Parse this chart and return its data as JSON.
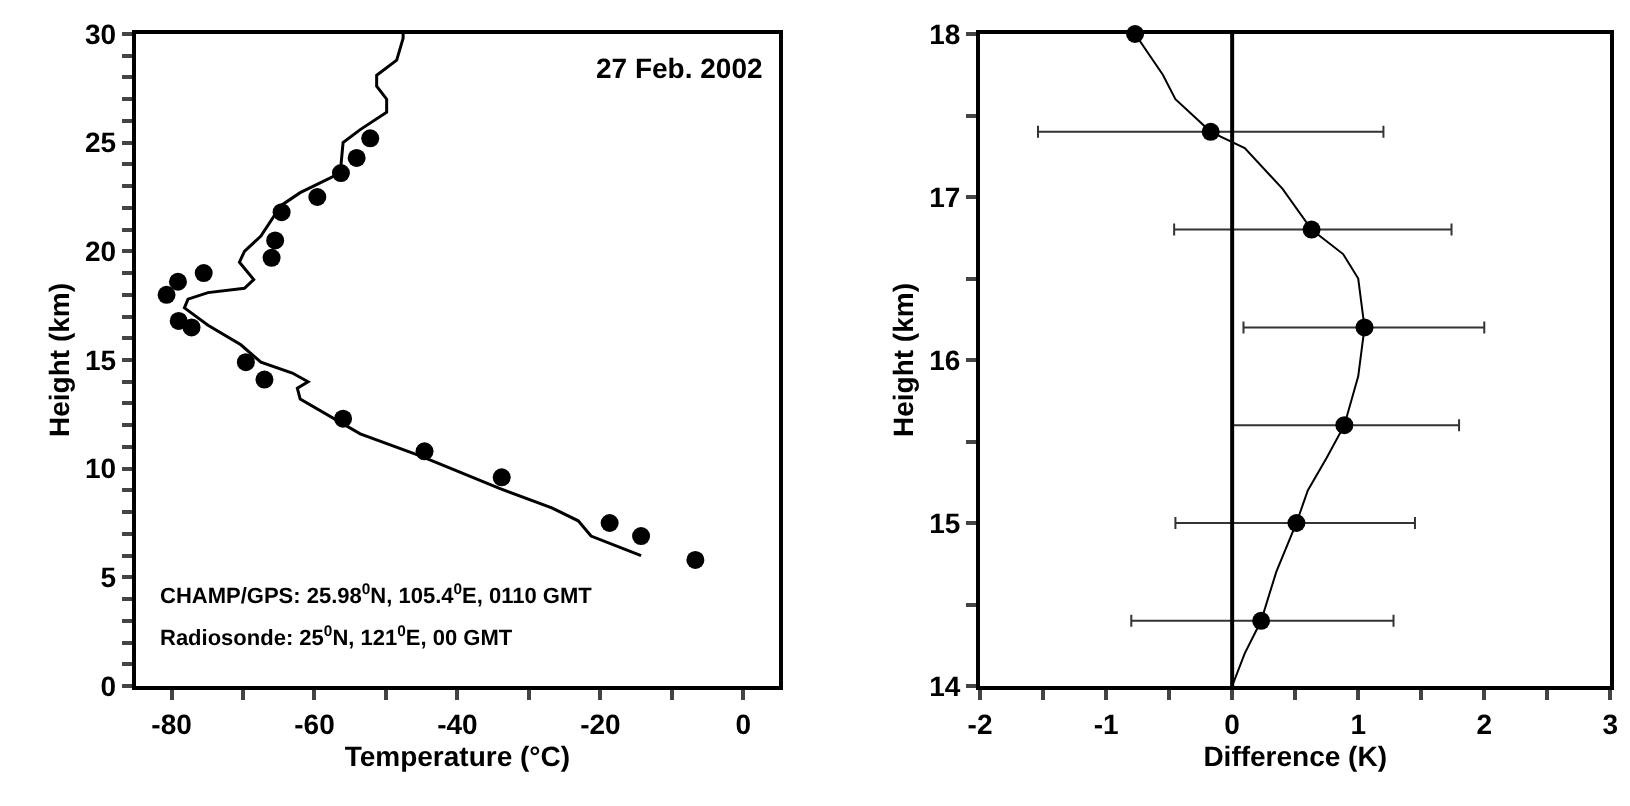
{
  "chart_data": [
    {
      "type": "line",
      "xlabel": "Temperature (°C)",
      "ylabel": "Height (km)",
      "xlim": [
        -85,
        5
      ],
      "ylim": [
        0,
        30
      ],
      "xticks": [
        -80,
        {
          "value": -70,
          "label": null
        },
        -60,
        {
          "value": -50,
          "label": null
        },
        -40,
        {
          "value": -30,
          "label": null
        },
        -20,
        {
          "value": -10,
          "label": null
        },
        0
      ],
      "yticks": [
        0,
        {
          "value": 1,
          "label": null
        },
        {
          "value": 2,
          "label": null
        },
        {
          "value": 3,
          "label": null
        },
        {
          "value": 4,
          "label": null
        },
        5,
        {
          "value": 6,
          "label": null
        },
        {
          "value": 7,
          "label": null
        },
        {
          "value": 8,
          "label": null
        },
        {
          "value": 9,
          "label": null
        },
        10,
        {
          "value": 11,
          "label": null
        },
        {
          "value": 12,
          "label": null
        },
        {
          "value": 13,
          "label": null
        },
        {
          "value": 14,
          "label": null
        },
        15,
        {
          "value": 16,
          "label": null
        },
        {
          "value": 17,
          "label": null
        },
        {
          "value": 18,
          "label": null
        },
        {
          "value": 19,
          "label": null
        },
        20,
        {
          "value": 21,
          "label": null
        },
        {
          "value": 22,
          "label": null
        },
        {
          "value": 23,
          "label": null
        },
        {
          "value": 24,
          "label": null
        },
        25,
        {
          "value": 26,
          "label": null
        },
        {
          "value": 27,
          "label": null
        },
        {
          "value": 28,
          "label": null
        },
        {
          "value": 29,
          "label": null
        },
        30
      ],
      "grid": false,
      "legend": false,
      "annotations": [
        "27 Feb. 2002",
        "CHAMP/GPS: 25.98$^{0}$N, 105.4$^{0}$E, 0110 GMT",
        "Radiosonde: 25$^{0}$N, 121$^{0}$E, 00 GMT"
      ],
      "series": [
        {
          "color": "#000000",
          "marker": "none",
          "line_style": "solid",
          "x": [
            -14.3,
            -21.3,
            -23.1,
            -26.8,
            -34.2,
            -45.3,
            -53.6,
            -62.0,
            -62.4,
            -60.9,
            -63.1,
            -67.5,
            -70.3,
            -74.9,
            -78.2,
            -77.7,
            -74.9,
            -69.8,
            -68.5,
            -70.5,
            -69.8,
            -67.5,
            -64.7,
            -62.0,
            -56.4,
            -56.0,
            -53.6,
            -49.9,
            -49.9,
            -51.3,
            -51.3,
            -48.5,
            -47.6,
            -47.6
          ],
          "values": [
            6.0,
            6.9,
            7.6,
            8.2,
            9.1,
            10.6,
            11.6,
            13.2,
            13.7,
            14.0,
            14.4,
            14.9,
            15.7,
            16.6,
            17.4,
            17.8,
            18.1,
            18.3,
            18.7,
            19.5,
            20.0,
            20.7,
            22.1,
            22.7,
            23.6,
            25.0,
            25.6,
            26.4,
            27.0,
            27.6,
            28.1,
            28.8,
            29.8,
            30.0
          ]
        },
        {
          "type": "scatter",
          "color": "#000000",
          "marker": "circle",
          "x": [
            -6.7,
            -14.3,
            -18.7,
            -33.8,
            -44.6,
            -56.0,
            -67.0,
            -69.6,
            -77.2,
            -79.0,
            -80.7,
            -79.1,
            -75.5,
            -66.0,
            -65.5,
            -64.6,
            -59.6,
            -56.3,
            -54.1,
            -52.2
          ],
          "values": [
            5.8,
            6.9,
            7.5,
            9.6,
            10.8,
            12.3,
            14.1,
            14.9,
            16.5,
            16.8,
            18.0,
            18.6,
            19.0,
            19.7,
            20.5,
            21.8,
            22.5,
            23.6,
            24.3,
            25.2
          ]
        }
      ]
    },
    {
      "type": "line",
      "xlabel": "Difference (K)",
      "ylabel": "Height (km)",
      "xlim": [
        -2,
        3
      ],
      "ylim": [
        14,
        18
      ],
      "xticks": [
        -2,
        {
          "value": -1.5,
          "label": null
        },
        -1,
        {
          "value": -0.5,
          "label": null
        },
        0,
        {
          "value": 0.5,
          "label": null
        },
        1,
        {
          "value": 1.5,
          "label": null
        },
        2,
        {
          "value": 2.5,
          "label": null
        },
        3
      ],
      "yticks": [
        14,
        {
          "value": 14.5,
          "label": null
        },
        15,
        {
          "value": 15.5,
          "label": null
        },
        16,
        {
          "value": 16.5,
          "label": null
        },
        17,
        {
          "value": 17.5,
          "label": null
        },
        18
      ],
      "grid": false,
      "legend": false,
      "ref_lines": [
        {
          "axis": "x",
          "value": 0,
          "color": "#000000"
        }
      ],
      "series": [
        {
          "color": "#000000",
          "marker": "none",
          "line_style": "solid",
          "x": [
            0,
            0.1,
            0.23,
            0.35,
            0.51,
            0.6,
            0.75,
            0.89,
            1.0,
            1.05,
            1.0,
            0.88,
            0.63,
            0.4,
            0.1,
            -0.17,
            -0.45,
            -0.55,
            -0.77
          ],
          "values": [
            14.0,
            14.2,
            14.4,
            14.7,
            15.0,
            15.2,
            15.4,
            15.6,
            15.9,
            16.2,
            16.5,
            16.65,
            16.8,
            17.05,
            17.3,
            17.4,
            17.6,
            17.75,
            18.0
          ]
        },
        {
          "type": "scatter",
          "color": "#000000",
          "marker": "circle",
          "x": [
            0.23,
            0.51,
            0.89,
            1.05,
            0.63,
            -0.17,
            -0.77
          ],
          "values": [
            14.4,
            15.0,
            15.6,
            16.2,
            16.8,
            17.4,
            18.0
          ],
          "xerrors": [
            [
              -0.8,
              1.28
            ],
            [
              -0.45,
              1.45
            ],
            [
              0.0,
              1.8
            ],
            [
              0.09,
              2.0
            ],
            [
              -0.46,
              1.74
            ],
            [
              -1.54,
              1.2
            ],
            null
          ]
        }
      ]
    }
  ]
}
